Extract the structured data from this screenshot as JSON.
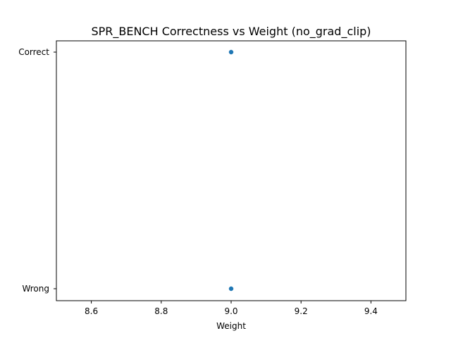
{
  "chart_data": {
    "type": "scatter",
    "title": "SPR_BENCH Correctness vs Weight (no_grad_clip)",
    "xlabel": "Weight",
    "ylabel": "",
    "xlim": [
      8.5,
      9.5
    ],
    "x_ticks": [
      8.6,
      8.8,
      9.0,
      9.2,
      9.4
    ],
    "x_tick_labels": [
      "8.6",
      "8.8",
      "9.0",
      "9.2",
      "9.4"
    ],
    "y_categories": [
      "Wrong",
      "Correct"
    ],
    "y_tick_labels": [
      "Wrong",
      "Correct"
    ],
    "series": [
      {
        "x": [
          9.0,
          9.0
        ],
        "y": [
          "Correct",
          "Wrong"
        ],
        "color": "#1f77b4"
      }
    ],
    "grid": false,
    "legend": "none"
  }
}
